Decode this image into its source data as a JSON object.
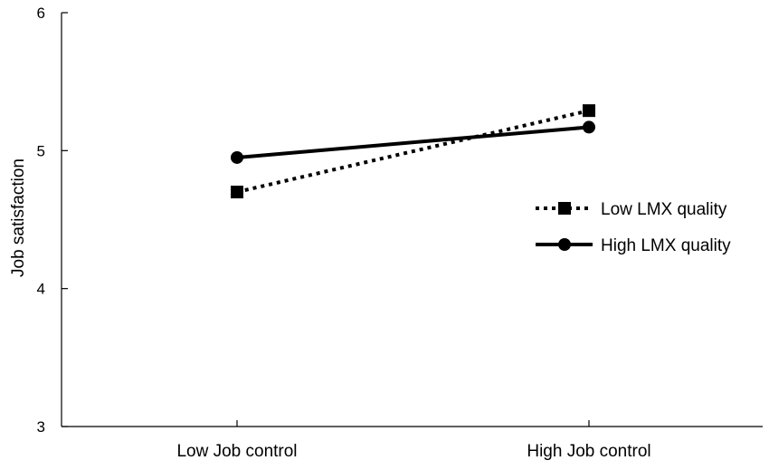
{
  "chart_data": {
    "type": "line",
    "title": "",
    "xlabel": "",
    "ylabel": "Job satisfaction",
    "categories": [
      "Low Job control",
      "High Job control"
    ],
    "ylim": [
      3,
      6
    ],
    "yticks": [
      "3",
      "4",
      "5",
      "6"
    ],
    "legend_position": "right",
    "grid": false,
    "series": [
      {
        "name": "Low LMX quality",
        "values": [
          4.7,
          5.29
        ],
        "line_style": "dotted",
        "marker": "square",
        "color": "#000000"
      },
      {
        "name": "High LMX quality",
        "values": [
          4.95,
          5.17
        ],
        "line_style": "solid",
        "marker": "circle",
        "color": "#000000"
      }
    ]
  }
}
